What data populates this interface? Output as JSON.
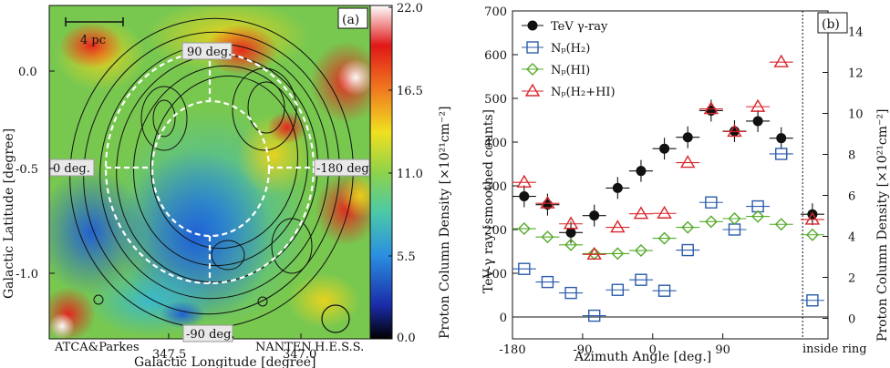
{
  "left": {
    "panel_label": "(a)",
    "scale_bar": "4 pc",
    "xlabel": "Galactic Longitude [degree]",
    "ylabel": "Galactic Latitude [degree]",
    "x_ticks": [
      "347.5",
      "347.0"
    ],
    "y_ticks": [
      "0.0",
      "-0.5",
      "-1.0"
    ],
    "colorbar_label": "Proton Column Density [×10²¹cm⁻²]",
    "colorbar_ticks": [
      "22.0",
      "16.5",
      "11.0",
      "5.5",
      "0.0"
    ],
    "angle_labels": [
      "90 deg.",
      "0 deg.",
      "-180 deg.",
      "-90 deg."
    ],
    "credits": [
      "ATCA&Parkes",
      "NANTEN",
      "H.E.S.S."
    ]
  },
  "chart_data": {
    "type": "scatter",
    "panel_label": "(b)",
    "xlabel": "Azimuth Angle [deg.]",
    "ylabel": "TeV-γ ray [smoothed counts]",
    "y2label": "Proton Column Density [×10²¹cm⁻²]",
    "x_tick_labels": [
      "-180",
      "-90",
      "0",
      "90"
    ],
    "inside_label": "inside ring",
    "xlim": [
      -180,
      225
    ],
    "ylim": [
      -50,
      700
    ],
    "y2lim": [
      -1,
      15
    ],
    "y_ticks": [
      0,
      100,
      200,
      300,
      400,
      500,
      600,
      700
    ],
    "y2_ticks": [
      0,
      2,
      4,
      6,
      8,
      10,
      12,
      14
    ],
    "x": [
      -165,
      -135,
      -105,
      -75,
      -45,
      -15,
      15,
      45,
      75,
      105,
      135,
      165
    ],
    "inside_x": 205,
    "series": [
      {
        "name": "TeV γ-ray",
        "marker": "circle",
        "color": "#111111",
        "axis": "left",
        "values": [
          276,
          257,
          193,
          232,
          295,
          334,
          385,
          411,
          472,
          425,
          448,
          409
        ],
        "inside": 235
      },
      {
        "name": "Nₚ(H₂)",
        "marker": "square",
        "color": "#2a5caa",
        "axis": "left",
        "values": [
          110,
          80,
          55,
          3,
          62,
          85,
          60,
          153,
          262,
          200,
          253,
          373
        ],
        "inside": 38
      },
      {
        "name": "Nₚ(HI)",
        "marker": "diamond",
        "color": "#55aa2a",
        "axis": "left",
        "values": [
          202,
          183,
          165,
          145,
          145,
          152,
          180,
          205,
          218,
          225,
          230,
          212
        ],
        "inside": 188
      },
      {
        "name": "Nₚ(H₂+HI)",
        "marker": "triangle",
        "color": "#d9262b",
        "axis": "left",
        "values": [
          308,
          260,
          213,
          143,
          205,
          236,
          237,
          353,
          476,
          424,
          481,
          583
        ],
        "inside": 223
      }
    ]
  }
}
